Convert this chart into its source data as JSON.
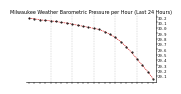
{
  "title": "Milwaukee Weather Barometric Pressure per Hour (Last 24 Hours)",
  "background_color": "#ffffff",
  "line_color": "#cc0000",
  "marker_color": "#000000",
  "grid_color": "#aaaaaa",
  "hours": [
    0,
    1,
    2,
    3,
    4,
    5,
    6,
    7,
    8,
    9,
    10,
    11,
    12,
    13,
    14,
    15,
    16,
    17,
    18,
    19,
    20,
    21,
    22,
    23
  ],
  "pressure": [
    30.18,
    30.17,
    30.15,
    30.14,
    30.13,
    30.12,
    30.1,
    30.09,
    30.07,
    30.05,
    30.03,
    30.01,
    29.99,
    29.97,
    29.93,
    29.88,
    29.82,
    29.74,
    29.65,
    29.54,
    29.42,
    29.3,
    29.18,
    29.05
  ],
  "ylim": [
    28.98,
    30.25
  ],
  "yticks": [
    29.1,
    29.2,
    29.3,
    29.4,
    29.5,
    29.6,
    29.7,
    29.8,
    29.9,
    30.0,
    30.1,
    30.2
  ],
  "ytick_labels": [
    "29.1",
    "29.2",
    "29.3",
    "29.4",
    "29.5",
    "29.6",
    "29.7",
    "29.8",
    "29.9",
    "30.0",
    "30.1",
    "30.2"
  ],
  "vgrid_positions": [
    4,
    8,
    12,
    16,
    20
  ],
  "title_fontsize": 3.5,
  "tick_fontsize": 2.8,
  "line_width": 0.5,
  "marker_size": 1.0
}
